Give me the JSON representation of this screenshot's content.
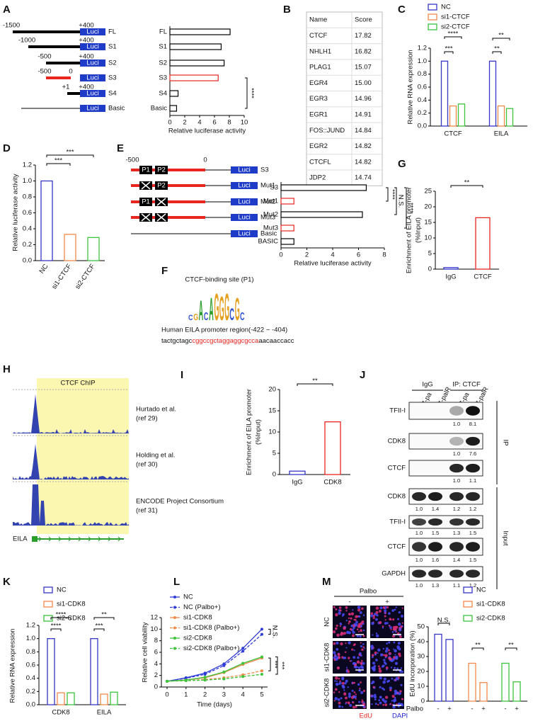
{
  "panel_labels": [
    "A",
    "B",
    "C",
    "D",
    "E",
    "F",
    "G",
    "H",
    "I",
    "J",
    "K",
    "L",
    "M"
  ],
  "construct_a": {
    "reporter": "Luci",
    "rows": [
      {
        "start": "-1500",
        "end": "+400",
        "name": "FL"
      },
      {
        "start": "-1000",
        "end": "+400",
        "name": "S1"
      },
      {
        "start": "-500",
        "end": "+400",
        "name": "S2"
      },
      {
        "start": "-500",
        "end": "0",
        "name": "S3"
      },
      {
        "start": "+1",
        "end": "+400",
        "name": "S4"
      },
      {
        "name": "Basic"
      }
    ]
  },
  "table": {
    "header": [
      "Name",
      "Score"
    ],
    "rows": [
      [
        "CTCF",
        "17.82"
      ],
      [
        "NHLH1",
        "16.82"
      ],
      [
        "PLAG1",
        "15.07"
      ],
      [
        "EGR4",
        "15.00"
      ],
      [
        "EGR3",
        "14.96"
      ],
      [
        "EGR1",
        "14.91"
      ],
      [
        "FOS::JUND",
        "14.84"
      ],
      [
        "EGR2",
        "14.82"
      ],
      [
        "CTCFL",
        "14.82"
      ],
      [
        "JDP2",
        "14.74"
      ]
    ]
  },
  "construct_e": {
    "reporter": "Luci",
    "start": "-500",
    "end": "0",
    "rows": [
      {
        "sites": [
          "P1",
          "P2"
        ],
        "name": "S3"
      },
      {
        "sites": [
          null,
          "P2"
        ],
        "name": "Mut1"
      },
      {
        "sites": [
          "P1",
          null
        ],
        "name": "Mut2"
      },
      {
        "sites": [
          null,
          null
        ],
        "name": "Mut3"
      },
      {
        "name": "Basic"
      }
    ]
  },
  "motif": {
    "title": "CTCF-binding site (P1)",
    "logo": [
      "C",
      "G",
      "A",
      "C",
      "A",
      "G",
      "G",
      "G",
      "C",
      "G",
      "C"
    ],
    "region": "Human EILA promoter region(-422 ~ -404)",
    "sequence": [
      "tactgctagc",
      "cggccgctaggaggcgcca",
      "aacaaccacc"
    ]
  },
  "chip": {
    "title": "CTCF ChIP",
    "tracks": [
      [
        "Hurtado et al.",
        "(ref 29)"
      ],
      [
        "Holding et al.",
        "(ref 30)"
      ],
      [
        "ENCODE Project Consortium",
        "(ref 31)"
      ]
    ],
    "gene": "EILA"
  },
  "blot": {
    "groups": [
      "IgG",
      "IP: CTCF"
    ],
    "lanes": [
      "MCF7-pa",
      "MCF7-palR",
      "MCF7-pa",
      "MCF7-palR"
    ],
    "sections": [
      {
        "name": "IP",
        "rows": [
          {
            "name": "TFII-I",
            "quant": [
              "1.0",
              "8.1"
            ]
          },
          {
            "name": "CDK8",
            "quant": [
              "1.0",
              "7.6"
            ]
          },
          {
            "name": "CTCF",
            "quant": [
              "1.0",
              "1.1"
            ]
          }
        ]
      },
      {
        "name": "Input",
        "rows": [
          {
            "name": "CDK8",
            "quant": [
              "1.0",
              "1.4",
              "1.2",
              "1.2"
            ]
          },
          {
            "name": "TFII-I",
            "quant": [
              "1.0",
              "1.5",
              "1.3",
              "1.5"
            ]
          },
          {
            "name": "CTCF",
            "quant": [
              "1.0",
              "1.6",
              "1.4",
              "1.5"
            ]
          },
          {
            "name": "GAPDH",
            "quant": [
              "1.0",
              "1.3",
              "1.1",
              "1.2"
            ]
          }
        ]
      }
    ]
  },
  "microscopy": {
    "treatment": "Palbo",
    "conditions": [
      "-",
      "+"
    ],
    "rows": [
      "NC",
      "si1-CDK8",
      "si2-CDK8"
    ],
    "stains": [
      "EdU",
      "DAPI"
    ]
  },
  "chart_data": [
    {
      "type": "bar",
      "orientation": "horizontal",
      "categories": [
        "FL",
        "S1",
        "S2",
        "S3",
        "S4",
        "Basic"
      ],
      "values": [
        8.1,
        6.9,
        7.3,
        6.5,
        1.1,
        0.9
      ],
      "colors": [
        "#000000",
        "#000000",
        "#000000",
        "#e8251f",
        "#000000",
        "#000000"
      ],
      "xlim": [
        0,
        10
      ],
      "xticks": [
        0,
        2,
        4,
        6,
        8,
        10
      ],
      "xlabel": "Relative luciferase activity",
      "annotations": [
        "****"
      ]
    },
    {
      "type": "bar",
      "categories": [
        "CTCF",
        "EILA"
      ],
      "series": [
        {
          "name": "NC",
          "color": "#3636c8",
          "values": [
            1.0,
            1.0
          ]
        },
        {
          "name": "si1-CTCF",
          "color": "#f08a4b",
          "values": [
            0.31,
            0.31
          ]
        },
        {
          "name": "si2-CTCF",
          "color": "#3cc43c",
          "values": [
            0.34,
            0.27
          ]
        }
      ],
      "ylim": [
        0,
        1.2
      ],
      "yticks": [
        {
          "value": 0,
          "label": "0.0"
        },
        0.2,
        0.4,
        0.6,
        0.8,
        {
          "value": 1,
          "label": "1.0"
        },
        1.2
      ],
      "ylabel": "Relative RNA expression",
      "annotations": [
        "****",
        "***",
        "**",
        "**"
      ]
    },
    {
      "type": "bar",
      "categories": [
        "NC",
        "si1-CTCF",
        "si2-CTCF"
      ],
      "values": [
        1.0,
        0.33,
        0.29
      ],
      "colors": [
        "#3636c8",
        "#f08a4b",
        "#3cc43c"
      ],
      "ylim": [
        0,
        1.2
      ],
      "yticks": [
        {
          "value": 0,
          "label": "0.0"
        },
        0.2,
        0.4,
        0.6,
        0.8,
        {
          "value": 1,
          "label": "1.0"
        },
        1.2
      ],
      "ylabel": "Relative luciferase activity",
      "annotations": [
        "***",
        "***"
      ]
    },
    {
      "type": "bar",
      "orientation": "horizontal",
      "categories": [
        "S3",
        "Mut1",
        "Mut2",
        "Mut3",
        "BASIC"
      ],
      "values": [
        6.6,
        1.0,
        6.3,
        1.0,
        1.0
      ],
      "colors": [
        "#000000",
        "#e8251f",
        "#000000",
        "#e8251f",
        "#000000"
      ],
      "xlim": [
        0,
        8
      ],
      "xticks": [
        0,
        2,
        4,
        6,
        8
      ],
      "xlabel": "Relative luciferase activity",
      "annotations": [
        "****",
        "N.S.",
        "****"
      ]
    },
    {
      "type": "bar",
      "categories": [
        "IgG",
        "CTCF"
      ],
      "values": [
        0.5,
        16.5
      ],
      "colors": [
        "#3636c8",
        "#e8251f"
      ],
      "ylim": [
        0,
        25
      ],
      "yticks": [
        0,
        5,
        10,
        15,
        20,
        25
      ],
      "ylabel": [
        "Enrichment of EILA promoter",
        "(%Input)"
      ],
      "annotations": [
        "**"
      ]
    },
    {
      "type": "bar",
      "categories": [
        "IgG",
        "CDK8"
      ],
      "values": [
        0.8,
        12.4
      ],
      "colors": [
        "#3636c8",
        "#e8251f"
      ],
      "ylim": [
        0,
        20
      ],
      "yticks": [
        0,
        5,
        10,
        15,
        20
      ],
      "ylabel": [
        "Enrichment of EILA promoter",
        "(%Input)"
      ],
      "annotations": [
        "**"
      ]
    },
    {
      "type": "bar",
      "categories": [
        "CDK8",
        "EILA"
      ],
      "series": [
        {
          "name": "NC",
          "color": "#3636c8",
          "values": [
            1.0,
            1.0
          ]
        },
        {
          "name": "si1-CDK8",
          "color": "#f08a4b",
          "values": [
            0.18,
            0.16
          ]
        },
        {
          "name": "si2-CDK8",
          "color": "#3cc43c",
          "values": [
            0.18,
            0.19
          ]
        }
      ],
      "ylim": [
        0,
        1.2
      ],
      "yticks": [
        {
          "value": 0,
          "label": "0.0"
        },
        0.2,
        0.4,
        0.6,
        0.8,
        {
          "value": 1,
          "label": "1.0"
        },
        1.2
      ],
      "ylabel": "Relative RNA expression",
      "annotations": [
        "****",
        "****",
        "***",
        "**"
      ]
    },
    {
      "type": "line",
      "x": [
        0,
        1,
        2,
        3,
        4,
        5
      ],
      "series": [
        {
          "name": "NC",
          "color": "#2f3bd6",
          "line_style": "solid",
          "values": [
            1,
            1.6,
            2.4,
            4.0,
            6.7,
            10.0
          ]
        },
        {
          "name": "NC (Palbo+)",
          "color": "#2f3bd6",
          "line_style": "dashed",
          "values": [
            1,
            1.5,
            2.2,
            3.7,
            6.2,
            9.1
          ]
        },
        {
          "name": "si1-CDK8",
          "color": "#f08a4b",
          "line_style": "solid",
          "values": [
            1,
            1.2,
            1.6,
            2.5,
            3.9,
            5.0
          ]
        },
        {
          "name": "si1-CDK8 (Palbo+)",
          "color": "#f08a4b",
          "line_style": "dashed",
          "values": [
            1,
            1.1,
            1.3,
            1.6,
            2.1,
            2.8
          ]
        },
        {
          "name": "si2-CDK8",
          "color": "#3cc43c",
          "line_style": "solid",
          "values": [
            1,
            1.2,
            1.7,
            2.6,
            4.1,
            5.2
          ]
        },
        {
          "name": "si2-CDK8 (Palbo+)",
          "color": "#3cc43c",
          "line_style": "dashed",
          "values": [
            1,
            1.1,
            1.2,
            1.4,
            1.8,
            2.2
          ]
        }
      ],
      "xlim": [
        -0.3,
        5.3
      ],
      "xticks": [
        0,
        1,
        2,
        3,
        4,
        5
      ],
      "ylim": [
        0,
        12
      ],
      "yticks": [
        0,
        2,
        4,
        6,
        8,
        10,
        12
      ],
      "xlabel": "Time (days)",
      "ylabel": "Relative cell viability",
      "annotations": [
        "N.S.",
        "***",
        "***"
      ]
    },
    {
      "type": "bar",
      "categories": [
        "-",
        "+"
      ],
      "xlabel": "Palbo",
      "series": [
        {
          "name": "NC",
          "color": "#3636c8",
          "values": [
            45,
            41.5
          ]
        },
        {
          "name": "si1-CDK8",
          "color": "#f08a4b",
          "values": [
            25.5,
            12.5
          ]
        },
        {
          "name": "si2-CDK8",
          "color": "#3cc43c",
          "values": [
            25.5,
            13
          ]
        }
      ],
      "ylim": [
        0,
        50
      ],
      "yticks": [
        0,
        10,
        20,
        30,
        40,
        50
      ],
      "ylabel": "EdU incorporation (%)",
      "annotations": [
        "N.S.",
        "**",
        "**"
      ]
    }
  ]
}
